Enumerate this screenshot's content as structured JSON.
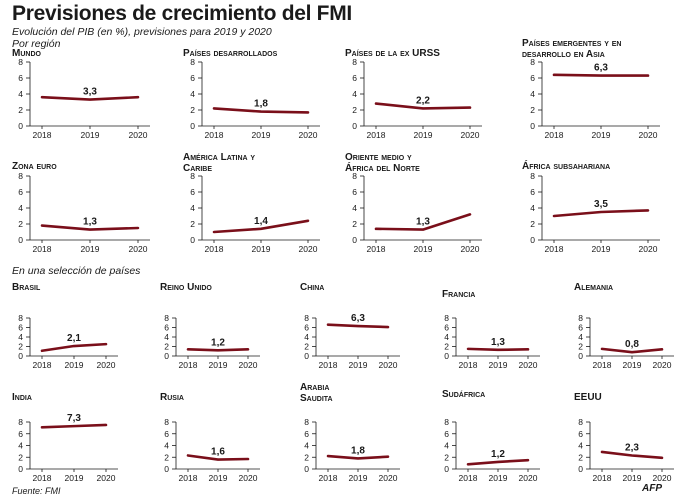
{
  "title": "Previsiones de crecimiento del FMI",
  "subtitle_line1": "Evolución del PIB (en %), previsiones para 2019 y 2020",
  "subtitle_line2": "Por región",
  "section_label": "En una selección de países",
  "source": "Fuente: FMI",
  "logo": "AFP",
  "colors": {
    "line": "#7a0f1a",
    "axis": "#1a1a1a",
    "text": "#1a1a1a"
  },
  "chart_data": [
    {
      "type": "line",
      "title": "Mundo",
      "x": [
        "2018",
        "2019",
        "2020"
      ],
      "values": [
        3.6,
        3.3,
        3.6
      ],
      "label_2019": "3,3",
      "ylim": [
        0,
        8
      ],
      "yticks": [
        "0",
        "2",
        "4",
        "6",
        "8"
      ]
    },
    {
      "type": "line",
      "title": "Países desarrollados",
      "x": [
        "2018",
        "2019",
        "2020"
      ],
      "values": [
        2.2,
        1.8,
        1.7
      ],
      "label_2019": "1,8",
      "ylim": [
        0,
        8
      ],
      "yticks": [
        "0",
        "2",
        "4",
        "6",
        "8"
      ]
    },
    {
      "type": "line",
      "title": "Países de la ex URSS",
      "x": [
        "2018",
        "2019",
        "2020"
      ],
      "values": [
        2.8,
        2.2,
        2.3
      ],
      "label_2019": "2,2",
      "ylim": [
        0,
        8
      ],
      "yticks": [
        "0",
        "2",
        "4",
        "6",
        "8"
      ]
    },
    {
      "type": "line",
      "title": "Países emergentes y en desarrollo en Asia",
      "x": [
        "2018",
        "2019",
        "2020"
      ],
      "values": [
        6.4,
        6.3,
        6.3
      ],
      "label_2019": "6,3",
      "ylim": [
        0,
        8
      ],
      "yticks": [
        "0",
        "2",
        "4",
        "6",
        "8"
      ]
    },
    {
      "type": "line",
      "title": "Zona euro",
      "x": [
        "2018",
        "2019",
        "2020"
      ],
      "values": [
        1.8,
        1.3,
        1.5
      ],
      "label_2019": "1,3",
      "ylim": [
        0,
        8
      ],
      "yticks": [
        "0",
        "2",
        "4",
        "6",
        "8"
      ]
    },
    {
      "type": "line",
      "title": "América Latina y Caribe",
      "x": [
        "2018",
        "2019",
        "2020"
      ],
      "values": [
        1.0,
        1.4,
        2.4
      ],
      "label_2019": "1,4",
      "ylim": [
        0,
        8
      ],
      "yticks": [
        "0",
        "2",
        "4",
        "6",
        "8"
      ]
    },
    {
      "type": "line",
      "title": "Oriente medio y África del Norte",
      "x": [
        "2018",
        "2019",
        "2020"
      ],
      "values": [
        1.4,
        1.3,
        3.2
      ],
      "label_2019": "1,3",
      "ylim": [
        0,
        8
      ],
      "yticks": [
        "0",
        "2",
        "4",
        "6",
        "8"
      ]
    },
    {
      "type": "line",
      "title": "África subsahariana",
      "x": [
        "2018",
        "2019",
        "2020"
      ],
      "values": [
        3.0,
        3.5,
        3.7
      ],
      "label_2019": "3,5",
      "ylim": [
        0,
        8
      ],
      "yticks": [
        "0",
        "2",
        "4",
        "6",
        "8"
      ]
    },
    {
      "type": "line",
      "title": "Brasil",
      "x": [
        "2018",
        "2019",
        "2020"
      ],
      "values": [
        1.1,
        2.1,
        2.5
      ],
      "label_2019": "2,1",
      "ylim": [
        0,
        8
      ],
      "yticks": [
        "0",
        "2",
        "4",
        "6",
        "8"
      ]
    },
    {
      "type": "line",
      "title": "Reino Unido",
      "x": [
        "2018",
        "2019",
        "2020"
      ],
      "values": [
        1.4,
        1.2,
        1.4
      ],
      "label_2019": "1,2",
      "ylim": [
        0,
        8
      ],
      "yticks": [
        "0",
        "2",
        "4",
        "6",
        "8"
      ]
    },
    {
      "type": "line",
      "title": "China",
      "x": [
        "2018",
        "2019",
        "2020"
      ],
      "values": [
        6.6,
        6.3,
        6.1
      ],
      "label_2019": "6,3",
      "ylim": [
        0,
        8
      ],
      "yticks": [
        "0",
        "2",
        "4",
        "6",
        "8"
      ]
    },
    {
      "type": "line",
      "title": "Francia",
      "x": [
        "2018",
        "2019",
        "2020"
      ],
      "values": [
        1.5,
        1.3,
        1.4
      ],
      "label_2019": "1,3",
      "ylim": [
        0,
        8
      ],
      "yticks": [
        "0",
        "2",
        "4",
        "6",
        "8"
      ]
    },
    {
      "type": "line",
      "title": "Alemania",
      "x": [
        "2018",
        "2019",
        "2020"
      ],
      "values": [
        1.5,
        0.8,
        1.4
      ],
      "label_2019": "0,8",
      "ylim": [
        0,
        8
      ],
      "yticks": [
        "0",
        "2",
        "4",
        "6",
        "8"
      ]
    },
    {
      "type": "line",
      "title": "India",
      "x": [
        "2018",
        "2019",
        "2020"
      ],
      "values": [
        7.1,
        7.3,
        7.5
      ],
      "label_2019": "7,3",
      "ylim": [
        0,
        8
      ],
      "yticks": [
        "0",
        "2",
        "4",
        "6",
        "8"
      ]
    },
    {
      "type": "line",
      "title": "Rusia",
      "x": [
        "2018",
        "2019",
        "2020"
      ],
      "values": [
        2.3,
        1.6,
        1.7
      ],
      "label_2019": "1,6",
      "ylim": [
        0,
        8
      ],
      "yticks": [
        "0",
        "2",
        "4",
        "6",
        "8"
      ]
    },
    {
      "type": "line",
      "title": "Arabia Saudita",
      "x": [
        "2018",
        "2019",
        "2020"
      ],
      "values": [
        2.2,
        1.8,
        2.1
      ],
      "label_2019": "1,8",
      "ylim": [
        0,
        8
      ],
      "yticks": [
        "0",
        "2",
        "4",
        "6",
        "8"
      ]
    },
    {
      "type": "line",
      "title": "Sudáfrica",
      "x": [
        "2018",
        "2019",
        "2020"
      ],
      "values": [
        0.8,
        1.2,
        1.5
      ],
      "label_2019": "1,2",
      "ylim": [
        0,
        8
      ],
      "yticks": [
        "0",
        "2",
        "4",
        "6",
        "8"
      ]
    },
    {
      "type": "line",
      "title": "EEUU",
      "x": [
        "2018",
        "2019",
        "2020"
      ],
      "values": [
        2.9,
        2.3,
        1.9
      ],
      "label_2019": "2,3",
      "ylim": [
        0,
        8
      ],
      "yticks": [
        "0",
        "2",
        "4",
        "6",
        "8"
      ]
    }
  ]
}
